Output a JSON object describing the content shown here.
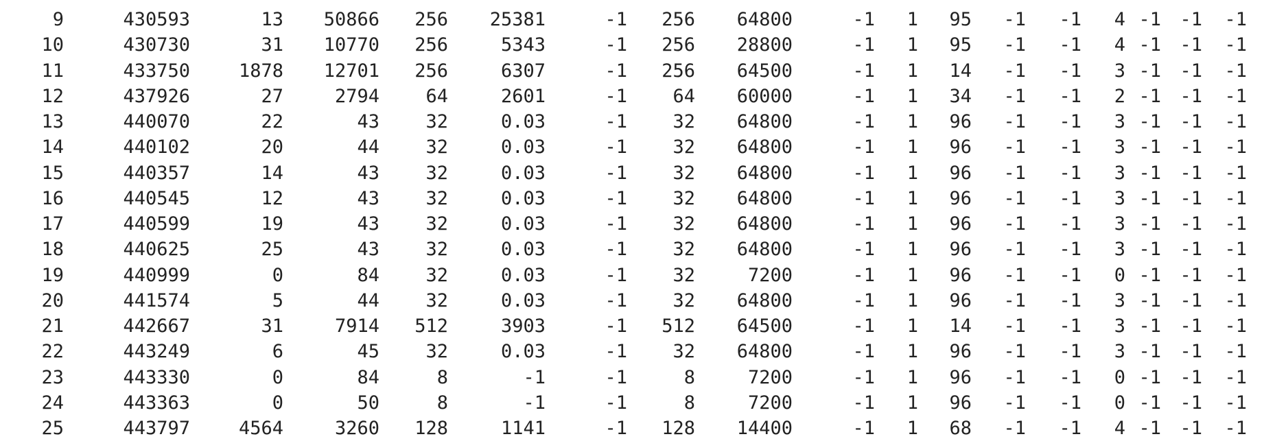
{
  "rows": [
    [
      "9",
      "430593",
      "13",
      "50866",
      "256",
      "25381",
      "-1",
      "256",
      "64800",
      "-1",
      "1",
      "95",
      "-1",
      "-1",
      "4",
      "-1",
      "-1",
      "-1"
    ],
    [
      "10",
      "430730",
      "31",
      "10770",
      "256",
      "5343",
      "-1",
      "256",
      "28800",
      "-1",
      "1",
      "95",
      "-1",
      "-1",
      "4",
      "-1",
      "-1",
      "-1"
    ],
    [
      "11",
      "433750",
      "1878",
      "12701",
      "256",
      "6307",
      "-1",
      "256",
      "64500",
      "-1",
      "1",
      "14",
      "-1",
      "-1",
      "3",
      "-1",
      "-1",
      "-1"
    ],
    [
      "12",
      "437926",
      "27",
      "2794",
      "64",
      "2601",
      "-1",
      "64",
      "60000",
      "-1",
      "1",
      "34",
      "-1",
      "-1",
      "2",
      "-1",
      "-1",
      "-1"
    ],
    [
      "13",
      "440070",
      "22",
      "43",
      "32",
      "0.03",
      "-1",
      "32",
      "64800",
      "-1",
      "1",
      "96",
      "-1",
      "-1",
      "3",
      "-1",
      "-1",
      "-1"
    ],
    [
      "14",
      "440102",
      "20",
      "44",
      "32",
      "0.03",
      "-1",
      "32",
      "64800",
      "-1",
      "1",
      "96",
      "-1",
      "-1",
      "3",
      "-1",
      "-1",
      "-1"
    ],
    [
      "15",
      "440357",
      "14",
      "43",
      "32",
      "0.03",
      "-1",
      "32",
      "64800",
      "-1",
      "1",
      "96",
      "-1",
      "-1",
      "3",
      "-1",
      "-1",
      "-1"
    ],
    [
      "16",
      "440545",
      "12",
      "43",
      "32",
      "0.03",
      "-1",
      "32",
      "64800",
      "-1",
      "1",
      "96",
      "-1",
      "-1",
      "3",
      "-1",
      "-1",
      "-1"
    ],
    [
      "17",
      "440599",
      "19",
      "43",
      "32",
      "0.03",
      "-1",
      "32",
      "64800",
      "-1",
      "1",
      "96",
      "-1",
      "-1",
      "3",
      "-1",
      "-1",
      "-1"
    ],
    [
      "18",
      "440625",
      "25",
      "43",
      "32",
      "0.03",
      "-1",
      "32",
      "64800",
      "-1",
      "1",
      "96",
      "-1",
      "-1",
      "3",
      "-1",
      "-1",
      "-1"
    ],
    [
      "19",
      "440999",
      "0",
      "84",
      "32",
      "0.03",
      "-1",
      "32",
      "7200",
      "-1",
      "1",
      "96",
      "-1",
      "-1",
      "0",
      "-1",
      "-1",
      "-1"
    ],
    [
      "20",
      "441574",
      "5",
      "44",
      "32",
      "0.03",
      "-1",
      "32",
      "64800",
      "-1",
      "1",
      "96",
      "-1",
      "-1",
      "3",
      "-1",
      "-1",
      "-1"
    ],
    [
      "21",
      "442667",
      "31",
      "7914",
      "512",
      "3903",
      "-1",
      "512",
      "64500",
      "-1",
      "1",
      "14",
      "-1",
      "-1",
      "3",
      "-1",
      "-1",
      "-1"
    ],
    [
      "22",
      "443249",
      "6",
      "45",
      "32",
      "0.03",
      "-1",
      "32",
      "64800",
      "-1",
      "1",
      "96",
      "-1",
      "-1",
      "3",
      "-1",
      "-1",
      "-1"
    ],
    [
      "23",
      "443330",
      "0",
      "84",
      "8",
      "-1",
      "-1",
      "8",
      "7200",
      "-1",
      "1",
      "96",
      "-1",
      "-1",
      "0",
      "-1",
      "-1",
      "-1"
    ],
    [
      "24",
      "443363",
      "0",
      "50",
      "8",
      "-1",
      "-1",
      "8",
      "7200",
      "-1",
      "1",
      "96",
      "-1",
      "-1",
      "0",
      "-1",
      "-1",
      "-1"
    ],
    [
      "25",
      "443797",
      "4564",
      "3260",
      "128",
      "1141",
      "-1",
      "128",
      "14400",
      "-1",
      "1",
      "68",
      "-1",
      "-1",
      "4",
      "-1",
      "-1",
      "-1"
    ]
  ]
}
